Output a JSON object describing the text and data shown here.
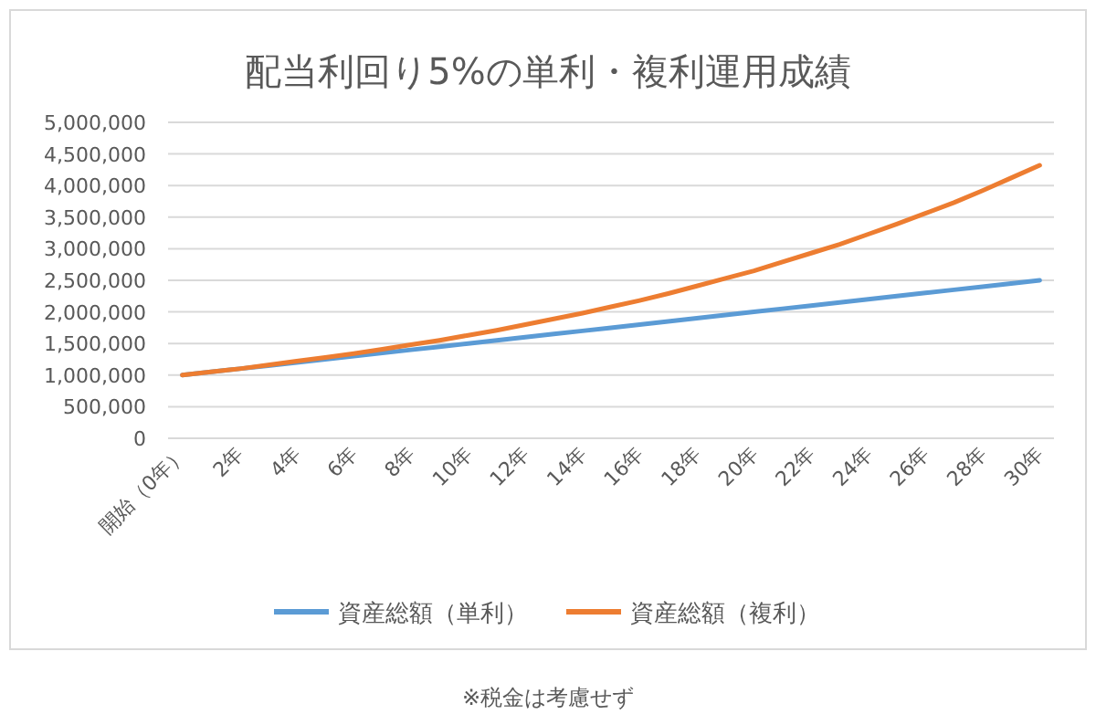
{
  "chart_data": {
    "type": "line",
    "title": "配当利回り5%の単利・複利運用成績",
    "categories": [
      "開始（0年）",
      null,
      "2年",
      null,
      "4年",
      null,
      "6年",
      null,
      "8年",
      null,
      "10年",
      null,
      "12年",
      null,
      "14年",
      null,
      "16年",
      null,
      "18年",
      null,
      "20年",
      null,
      "22年",
      null,
      "24年",
      null,
      "26年",
      null,
      "28年",
      null,
      "30年"
    ],
    "series": [
      {
        "name": "資産総額（単利）",
        "color": "#5b9bd5",
        "values": [
          1000000,
          1050000,
          1100000,
          1150000,
          1200000,
          1250000,
          1300000,
          1350000,
          1400000,
          1450000,
          1500000,
          1550000,
          1600000,
          1650000,
          1700000,
          1750000,
          1800000,
          1850000,
          1900000,
          1950000,
          2000000,
          2050000,
          2100000,
          2150000,
          2200000,
          2250000,
          2300000,
          2350000,
          2400000,
          2450000,
          2500000
        ]
      },
      {
        "name": "資産総額（複利）",
        "color": "#ed7d31",
        "values": [
          1000000,
          1050000,
          1100000,
          1160000,
          1220000,
          1280000,
          1340000,
          1410000,
          1480000,
          1550000,
          1630000,
          1710000,
          1800000,
          1890000,
          1980000,
          2080000,
          2180000,
          2290000,
          2410000,
          2530000,
          2650000,
          2790000,
          2930000,
          3070000,
          3230000,
          3390000,
          3560000,
          3730000,
          3920000,
          4120000,
          4320000
        ]
      }
    ],
    "ylim": [
      0,
      5000000
    ],
    "yticks": [
      {
        "value": 0,
        "label": "0"
      },
      {
        "value": 500000,
        "label": "500,000"
      },
      {
        "value": 1000000,
        "label": "1,000,000"
      },
      {
        "value": 1500000,
        "label": "1,500,000"
      },
      {
        "value": 2000000,
        "label": "2,000,000"
      },
      {
        "value": 2500000,
        "label": "2,500,000"
      },
      {
        "value": 3000000,
        "label": "3,000,000"
      },
      {
        "value": 3500000,
        "label": "3,500,000"
      },
      {
        "value": 4000000,
        "label": "4,000,000"
      },
      {
        "value": 4500000,
        "label": "4,500,000"
      },
      {
        "value": 5000000,
        "label": "5,000,000"
      }
    ],
    "grid": "y",
    "legend": "bottom",
    "marker": "none",
    "line_style": "solid",
    "annotations": [
      "※税金は考慮せず"
    ]
  }
}
